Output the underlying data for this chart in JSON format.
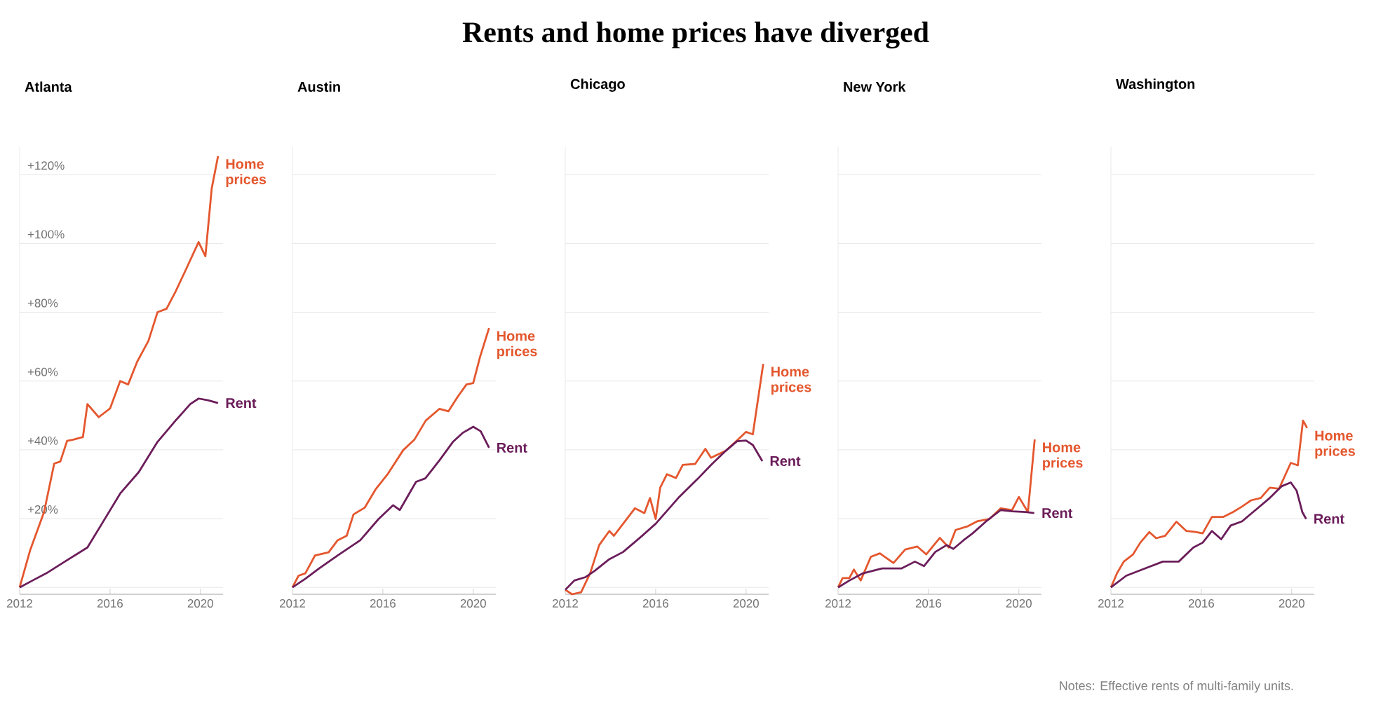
{
  "chart_data": [
    {
      "type": "line",
      "title": "Atlanta",
      "annotations": [
        "Rents and home prices have diverged"
      ],
      "xlim": [
        2012,
        2021
      ],
      "xticks": [
        2012,
        2016,
        2020
      ],
      "ylim": [
        -2,
        128
      ],
      "yticks": [
        {
          "value": 0,
          "label": null
        },
        {
          "value": 20,
          "label": "+20%"
        },
        {
          "value": 40,
          "label": "+40%"
        },
        {
          "value": 60,
          "label": "+60%"
        },
        {
          "value": 80,
          "label": "+80%"
        },
        {
          "value": 100,
          "label": "+100%"
        },
        {
          "value": 120,
          "label": "+120%"
        }
      ],
      "grid": "y",
      "series": [
        {
          "name": "Home prices",
          "color": "#e4572e",
          "x": [
            2012,
            2012.47,
            2013.08,
            2013.53,
            2013.8,
            2014.1,
            2014.4,
            2014.8,
            2015.0,
            2015.5,
            2016,
            2016.45,
            2016.8,
            2017.2,
            2017.7,
            2018.1,
            2018.5,
            2018.9,
            2019.4,
            2019.92,
            2020.22,
            2020.5,
            2020.78
          ],
          "values": [
            0,
            10.9,
            21.9,
            36,
            36.6,
            42.6,
            43,
            43.7,
            53.3,
            49.5,
            52,
            60,
            59,
            65.6,
            71.7,
            80,
            81,
            86,
            93,
            100.4,
            96.3,
            116,
            125.4
          ]
        },
        {
          "name": "Rent",
          "color": "#6b1d5a",
          "x": [
            2012,
            2012.57,
            2013.18,
            2014,
            2015.0,
            2015.63,
            2016.45,
            2017.27,
            2018.1,
            2018.9,
            2019.55,
            2019.92,
            2020.33,
            2020.78
          ],
          "values": [
            0,
            2,
            4.1,
            7.5,
            11.6,
            18.4,
            27.3,
            33.5,
            42.3,
            48.5,
            53.3,
            54.9,
            54.4,
            53.6
          ]
        }
      ]
    },
    {
      "type": "line",
      "title": "Austin",
      "tick_labels": "x",
      "xlim": [
        2012,
        2021
      ],
      "xticks": [
        2012,
        2016,
        2020
      ],
      "ylim": [
        -2,
        128
      ],
      "yticks": [
        0,
        20,
        40,
        60,
        80,
        100,
        120
      ],
      "grid": "y",
      "series": [
        {
          "name": "Home prices",
          "color": "#e4572e",
          "x": [
            2012,
            2012.27,
            2012.57,
            2013,
            2013.6,
            2014,
            2014.4,
            2014.7,
            2015.2,
            2015.7,
            2016.2,
            2016.9,
            2017.4,
            2017.9,
            2018.5,
            2018.9,
            2019.3,
            2019.7,
            2020,
            2020.3,
            2020.7
          ],
          "values": [
            0,
            3.4,
            4.1,
            9.3,
            10.2,
            13.7,
            15,
            21.2,
            23.2,
            28.7,
            32.8,
            39.9,
            43,
            48.5,
            51.9,
            51.2,
            55.3,
            59,
            59.4,
            67,
            75.4
          ]
        },
        {
          "name": "Rent",
          "color": "#6b1d5a",
          "x": [
            2012,
            2012.57,
            2013.18,
            2014,
            2015,
            2015.8,
            2016.45,
            2016.75,
            2017.47,
            2017.88,
            2018.5,
            2019.1,
            2019.55,
            2020.0,
            2020.33,
            2020.7
          ],
          "values": [
            0,
            2.5,
            5.5,
            9.3,
            13.7,
            19.8,
            23.9,
            22.5,
            30.7,
            31.7,
            36.9,
            42.3,
            45,
            46.7,
            45.4,
            40.6
          ]
        }
      ]
    },
    {
      "type": "line",
      "title": "Chicago",
      "tick_labels": "x",
      "xlim": [
        2012,
        2021
      ],
      "xticks": [
        2012,
        2016,
        2020
      ],
      "ylim": [
        -2,
        128
      ],
      "yticks": [
        0,
        20,
        40,
        60,
        80,
        100,
        120
      ],
      "grid": "y",
      "series": [
        {
          "name": "Home prices",
          "color": "#e4572e",
          "x": [
            2012,
            2012.3,
            2012.7,
            2013.1,
            2013.5,
            2013.95,
            2014.15,
            2014.56,
            2015.08,
            2015.5,
            2015.75,
            2016.0,
            2016.2,
            2016.5,
            2016.9,
            2017.2,
            2017.75,
            2018.2,
            2018.45,
            2019.1,
            2019.6,
            2020,
            2020.3,
            2020.76
          ],
          "values": [
            -0.7,
            -2,
            -1.4,
            4.1,
            12.3,
            16.4,
            15,
            18.5,
            23,
            21.6,
            26,
            19.9,
            29,
            32.9,
            31.8,
            35.6,
            35.9,
            40.3,
            37.7,
            39.7,
            42.7,
            45.2,
            44.5,
            65
          ]
        },
        {
          "name": "Rent",
          "color": "#6b1d5a",
          "x": [
            2012,
            2012.4,
            2012.9,
            2013.3,
            2013.95,
            2014.56,
            2015.4,
            2016,
            2017,
            2017.85,
            2018.45,
            2019.1,
            2019.6,
            2020,
            2020.3,
            2020.72
          ],
          "values": [
            -0.7,
            2,
            3,
            4.8,
            8.2,
            10.3,
            15,
            18.5,
            26,
            31.5,
            35.6,
            39.7,
            42.5,
            42.7,
            41.4,
            36.7
          ]
        }
      ]
    },
    {
      "type": "line",
      "title": "New York",
      "tick_labels": "x",
      "xlim": [
        2012,
        2021
      ],
      "xticks": [
        2012,
        2016,
        2020
      ],
      "ylim": [
        -2,
        128
      ],
      "yticks": [
        0,
        20,
        40,
        60,
        80,
        100,
        120
      ],
      "grid": "y",
      "series": [
        {
          "name": "Home prices",
          "color": "#e4572e",
          "x": [
            2012,
            2012.2,
            2012.5,
            2012.7,
            2013.0,
            2013.45,
            2013.85,
            2014.45,
            2014.97,
            2015.5,
            2015.9,
            2016.5,
            2016.9,
            2017.2,
            2017.75,
            2018.15,
            2018.7,
            2019.2,
            2019.7,
            2020,
            2020.4,
            2020.7
          ],
          "values": [
            0,
            2.7,
            2.7,
            5.2,
            2,
            8.9,
            9.9,
            7.1,
            11,
            11.9,
            9.6,
            14.4,
            11.6,
            16.7,
            17.8,
            19.2,
            19.9,
            23,
            22.5,
            26.3,
            21.9,
            43
          ]
        },
        {
          "name": "Rent",
          "color": "#6b1d5a",
          "x": [
            2012,
            2012.5,
            2013.1,
            2013.95,
            2014.8,
            2015.4,
            2015.8,
            2016.3,
            2016.8,
            2017.1,
            2017.55,
            2017.95,
            2018.55,
            2019.2,
            2019.7,
            2020.3,
            2020.68
          ],
          "values": [
            0,
            2,
            4.1,
            5.5,
            5.5,
            7.5,
            6.2,
            10.3,
            12.3,
            11.2,
            13.7,
            15.7,
            19.2,
            22.5,
            22.1,
            21.9,
            21.6
          ]
        }
      ]
    },
    {
      "type": "line",
      "title": "Washington",
      "tick_labels": "x",
      "annotations": [
        "Notes: Effective rents of multi-family units."
      ],
      "xlim": [
        2012,
        2021
      ],
      "xticks": [
        2012,
        2016,
        2020
      ],
      "ylim": [
        -2,
        128
      ],
      "yticks": [
        0,
        20,
        40,
        60,
        80,
        100,
        120
      ],
      "grid": "y",
      "series": [
        {
          "name": "Home prices",
          "color": "#e4572e",
          "x": [
            2012,
            2012.27,
            2012.57,
            2012.98,
            2013.3,
            2013.7,
            2014.0,
            2014.4,
            2014.9,
            2015.34,
            2015.75,
            2016.06,
            2016.47,
            2016.98,
            2017.4,
            2017.8,
            2018.2,
            2018.63,
            2019.03,
            2019.44,
            2019.96,
            2020.27,
            2020.5,
            2020.68
          ],
          "values": [
            0,
            4.1,
            7.5,
            9.6,
            13,
            16.1,
            14.3,
            15,
            19.1,
            16.4,
            16.1,
            15.7,
            20.5,
            20.5,
            21.9,
            23.5,
            25.3,
            26,
            29,
            28.7,
            36.2,
            35.5,
            48.5,
            46.4
          ]
        },
        {
          "name": "Rent",
          "color": "#6b1d5a",
          "x": [
            2012,
            2012.68,
            2013.5,
            2014.3,
            2015.0,
            2015.65,
            2016.06,
            2016.47,
            2016.88,
            2017.3,
            2017.8,
            2018.4,
            2019.03,
            2019.55,
            2019.96,
            2020.22,
            2020.47,
            2020.64
          ],
          "values": [
            0,
            3.4,
            5.5,
            7.5,
            7.5,
            11.6,
            13,
            16.4,
            14,
            18,
            19.2,
            22.5,
            26,
            29.4,
            30.5,
            28.1,
            21.9,
            19.9
          ]
        }
      ]
    }
  ]
}
